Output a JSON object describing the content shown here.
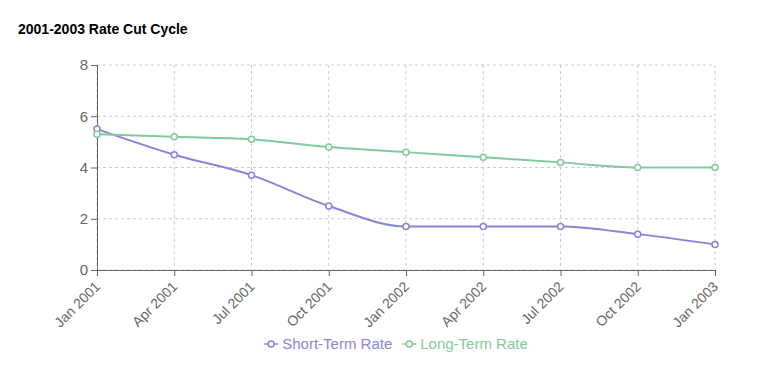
{
  "chart_data": {
    "type": "line",
    "title": "2001-2003 Rate Cut Cycle",
    "categories": [
      "Jan 2001",
      "Apr 2001",
      "Jul 2001",
      "Oct 2001",
      "Jan 2002",
      "Apr 2002",
      "Jul 2002",
      "Oct 2002",
      "Jan 2003"
    ],
    "series": [
      {
        "name": "Short-Term Rate",
        "color": "#8884d8",
        "marker": "circle",
        "values": [
          5.5,
          4.5,
          3.7,
          2.5,
          1.7,
          1.7,
          1.7,
          1.4,
          1.0
        ]
      },
      {
        "name": "Long-Term Rate",
        "color": "#82ca9d",
        "marker": "circle",
        "values": [
          5.3,
          5.2,
          5.1,
          4.8,
          4.6,
          4.4,
          4.2,
          4.0,
          4.0
        ]
      }
    ],
    "ylim": [
      0,
      8
    ],
    "yticks": [
      0,
      2,
      4,
      6,
      8
    ],
    "grid": true,
    "legend": "bottom"
  }
}
